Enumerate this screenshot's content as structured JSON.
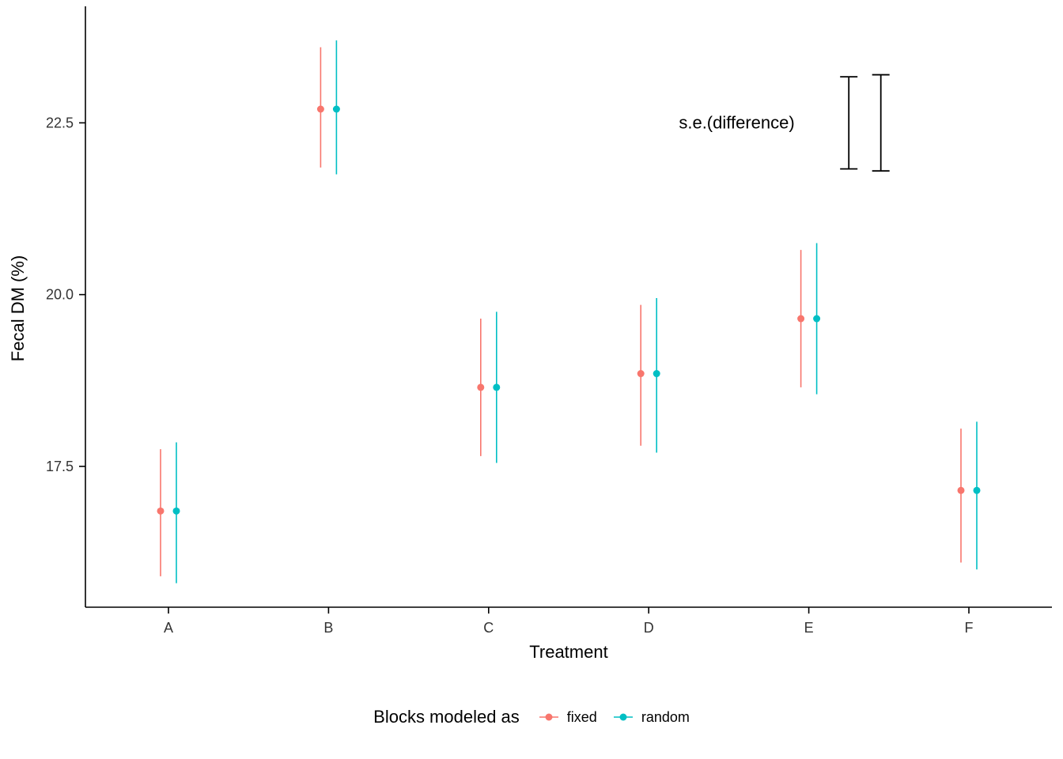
{
  "figure": {
    "background": "#ffffff",
    "axis_color": "#000000",
    "tick_label_color": "#333333"
  },
  "chart_data": {
    "type": "scatter",
    "subtype": "pointrange-dodged",
    "title": "",
    "xlabel": "Treatment",
    "ylabel": "Fecal DM (%)",
    "categories": [
      "A",
      "B",
      "C",
      "D",
      "E",
      "F"
    ],
    "yticks": [
      17.5,
      20.0,
      22.5
    ],
    "ylim": [
      15.45,
      24.15
    ],
    "grid": false,
    "series": [
      {
        "name": "fixed",
        "color": "#F8766D",
        "means": [
          16.85,
          22.7,
          18.65,
          18.85,
          19.65,
          17.15
        ],
        "lower": [
          15.9,
          21.85,
          17.65,
          17.8,
          18.65,
          16.1
        ],
        "upper": [
          17.75,
          23.6,
          19.65,
          19.85,
          20.65,
          18.05
        ]
      },
      {
        "name": "random",
        "color": "#00BFC4",
        "means": [
          16.85,
          22.7,
          18.65,
          18.85,
          19.65,
          17.15
        ],
        "lower": [
          15.8,
          21.75,
          17.55,
          17.7,
          18.55,
          16.0
        ],
        "upper": [
          17.85,
          23.7,
          19.75,
          19.95,
          20.75,
          18.15
        ]
      }
    ],
    "annotation": {
      "label": "s.e.(difference)",
      "label_x": 4.55,
      "label_y": 22.5,
      "color": "#000000",
      "bars": [
        {
          "x": 5.25,
          "center": 22.5,
          "half_height": 0.67
        },
        {
          "x": 5.45,
          "center": 22.5,
          "half_height": 0.7
        }
      ]
    },
    "legend": {
      "title": "Blocks modeled as",
      "position": "bottom",
      "entries": [
        {
          "label": "fixed",
          "color": "#F8766D"
        },
        {
          "label": "random",
          "color": "#00BFC4"
        }
      ]
    }
  }
}
